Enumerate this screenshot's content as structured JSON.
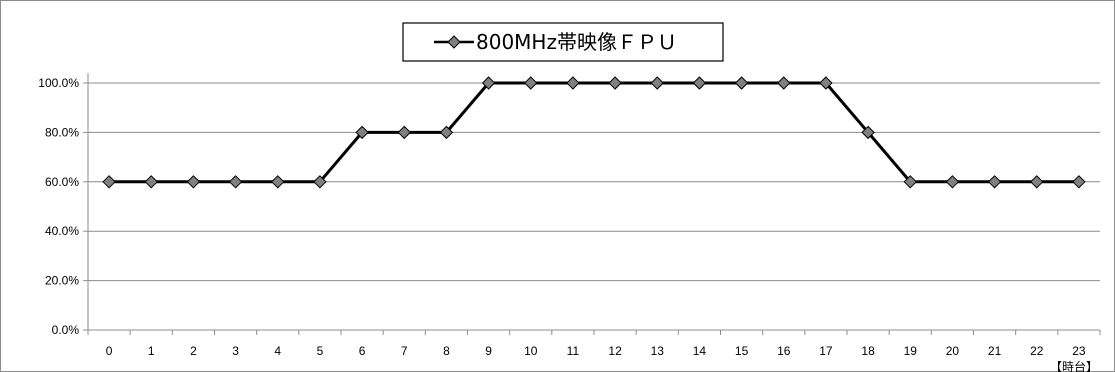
{
  "chart_data": {
    "type": "line",
    "legend": {
      "placement": "top-center",
      "label": "800MHz帯映像ＦＰＵ"
    },
    "x_unit_label": "【時台】",
    "categories": [
      "0",
      "1",
      "2",
      "3",
      "4",
      "5",
      "6",
      "7",
      "8",
      "9",
      "10",
      "11",
      "12",
      "13",
      "14",
      "15",
      "16",
      "17",
      "18",
      "19",
      "20",
      "21",
      "22",
      "23"
    ],
    "series": [
      {
        "name": "800MHz帯映像ＦＰＵ",
        "values": [
          60,
          60,
          60,
          60,
          60,
          60,
          80,
          80,
          80,
          100,
          100,
          100,
          100,
          100,
          100,
          100,
          100,
          100,
          80,
          60,
          60,
          60,
          60,
          60
        ],
        "color": "#000000",
        "marker": "diamond",
        "marker_color": "#808080"
      }
    ],
    "ylim": [
      0,
      100
    ],
    "y_ticks": [
      "0.0%",
      "20.0%",
      "40.0%",
      "60.0%",
      "80.0%",
      "100.0%"
    ],
    "grid": true
  }
}
